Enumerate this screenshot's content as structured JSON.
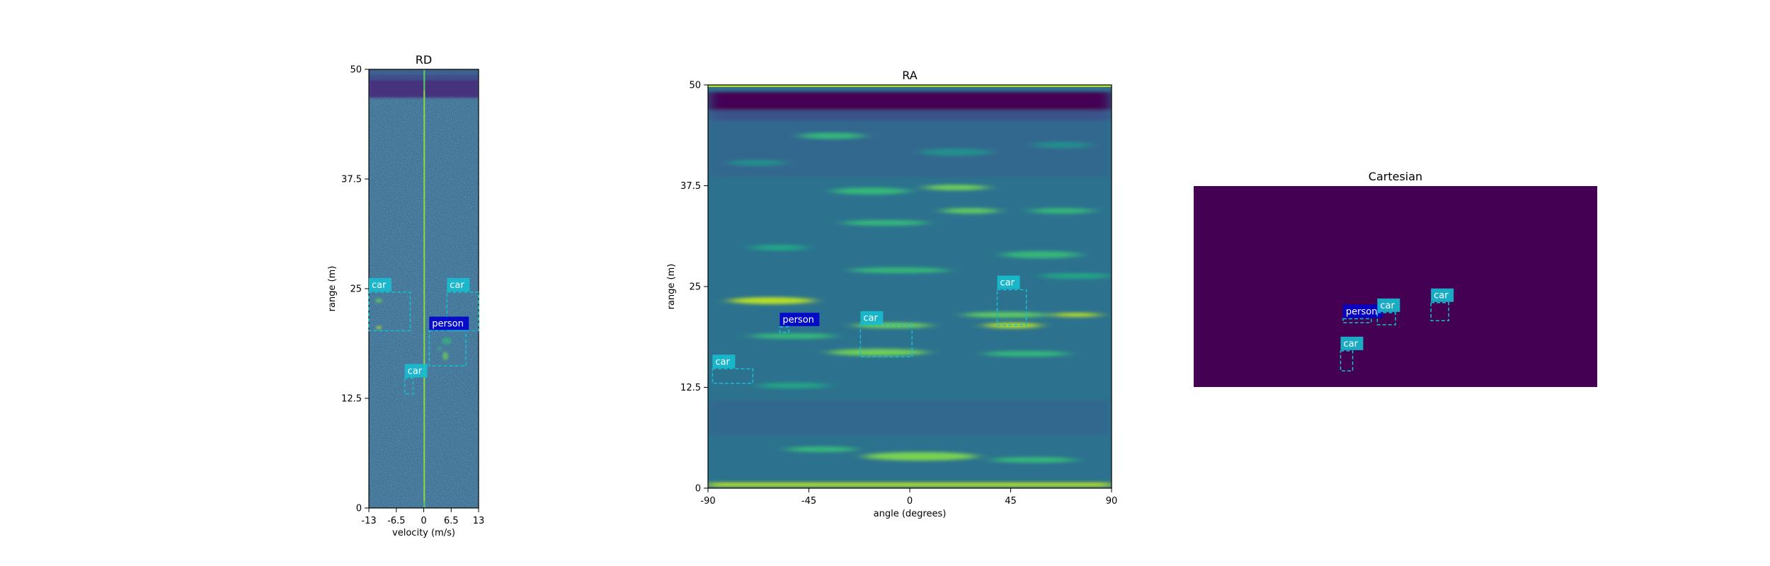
{
  "colors": {
    "viridis_dark": "#440154",
    "viridis_deep": "#3b528b",
    "viridis_mid": "#21908d",
    "viridis_green": "#5ec962",
    "viridis_yellow": "#fde725",
    "box_car": "#17becf",
    "box_person": "#0000cd"
  },
  "chart_data": [
    {
      "type": "heatmap",
      "title": "RD",
      "xlabel": "velocity (m/s)",
      "ylabel": "range (m)",
      "xlim": [
        -13,
        13
      ],
      "ylim": [
        0,
        50
      ],
      "xticks": [
        "-13",
        "-6.5",
        "0",
        "6.5",
        "13"
      ],
      "yticks": [
        "0",
        "12.5",
        "25",
        "37.5",
        "50"
      ],
      "annotations": [
        {
          "label": "car",
          "x": [
            -13,
            -3.2
          ],
          "y": [
            20.2,
            24.6
          ]
        },
        {
          "label": "car",
          "x": [
            5.5,
            13
          ],
          "y": [
            20.2,
            24.6
          ]
        },
        {
          "label": "person",
          "x": [
            1.3,
            10
          ],
          "y": [
            16.2,
            20.2
          ]
        },
        {
          "label": "car",
          "x": [
            -4.5,
            -2.5
          ],
          "y": [
            13.0,
            14.8
          ]
        }
      ]
    },
    {
      "type": "heatmap",
      "title": "RA",
      "xlabel": "angle (degrees)",
      "ylabel": "range (m)",
      "xlim": [
        -90,
        90
      ],
      "ylim": [
        0,
        50
      ],
      "xticks": [
        "-90",
        "-45",
        "0",
        "45",
        "90"
      ],
      "yticks": [
        "0",
        "12.5",
        "25",
        "37.5",
        "50"
      ],
      "annotations": [
        {
          "label": "car",
          "x": [
            -88,
            -70
          ],
          "y": [
            13.0,
            14.8
          ]
        },
        {
          "label": "person",
          "x": [
            -58,
            -54
          ],
          "y": [
            19.3,
            20.0
          ]
        },
        {
          "label": "car",
          "x": [
            -22,
            1
          ],
          "y": [
            16.3,
            20.2
          ]
        },
        {
          "label": "car",
          "x": [
            39,
            52
          ],
          "y": [
            20.2,
            24.6
          ]
        }
      ]
    },
    {
      "type": "heatmap",
      "title": "Cartesian",
      "xlabel": "",
      "ylabel": "",
      "annotations": [
        {
          "label": "car",
          "x": [
            0.364,
            0.394
          ],
          "y": [
            0.08,
            0.18
          ]
        },
        {
          "label": "person",
          "x": [
            0.37,
            0.44
          ],
          "y": [
            0.32,
            0.34
          ]
        },
        {
          "label": "car",
          "x": [
            0.455,
            0.5
          ],
          "y": [
            0.31,
            0.37
          ]
        },
        {
          "label": "car",
          "x": [
            0.588,
            0.632
          ],
          "y": [
            0.33,
            0.42
          ]
        }
      ]
    }
  ]
}
